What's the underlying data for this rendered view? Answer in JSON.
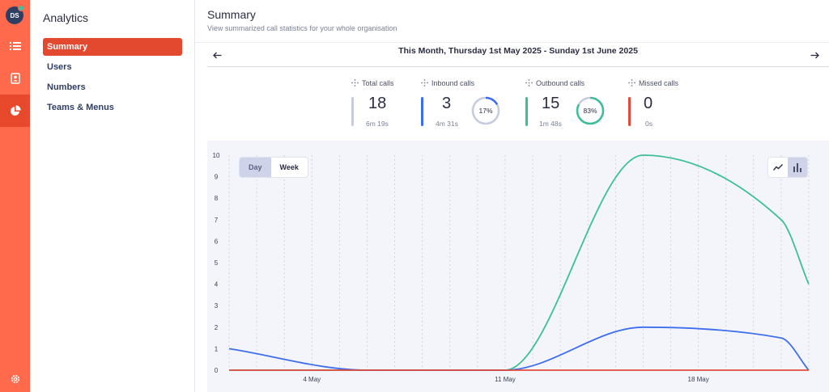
{
  "rail": {
    "avatar_initials": "DS",
    "items": [
      {
        "icon": "list-icon"
      },
      {
        "icon": "contacts-icon"
      },
      {
        "icon": "pie-chart-icon",
        "active": true
      },
      {
        "icon": "settings-icon"
      }
    ]
  },
  "sidebar": {
    "title": "Analytics",
    "items": [
      {
        "label": "Summary",
        "active": true
      },
      {
        "label": "Users"
      },
      {
        "label": "Numbers"
      },
      {
        "label": "Teams & Menus"
      }
    ]
  },
  "header": {
    "title": "Summary",
    "subtitle": "View summarized call statistics for your whole organisation"
  },
  "date_range": {
    "label": "This Month, Thursday 1st May 2025 - Sunday 1st June 2025"
  },
  "stats": [
    {
      "label": "Total calls",
      "value": "18",
      "sub": "6m 19s",
      "color": "#c7cbe0"
    },
    {
      "label": "Inbound calls",
      "value": "3",
      "sub": "4m 31s",
      "color": "#3d6ef0",
      "ring_text": "17%",
      "ring_fraction": 0.17
    },
    {
      "label": "Outbound calls",
      "value": "15",
      "sub": "1m 48s",
      "color": "#3cbf98",
      "ring_text": "83%",
      "ring_fraction": 0.83
    },
    {
      "label": "Missed calls",
      "value": "0",
      "sub": "0s",
      "color": "#e14a3a"
    }
  ],
  "chart_controls": {
    "day_label": "Day",
    "week_label": "Week",
    "selected": "Day",
    "chart_types": [
      "line-chart-icon",
      "bar-chart-icon"
    ],
    "selected_type": "bar-chart-icon"
  },
  "chart_data": {
    "type": "line",
    "x": [
      0,
      5,
      10,
      15,
      20,
      21
    ],
    "x_tick_values": [
      3,
      10,
      17
    ],
    "x_tick_labels": [
      "4 May",
      "11 May",
      "18 May"
    ],
    "ylim": [
      0,
      10
    ],
    "y_ticks": [
      0,
      1,
      2,
      3,
      4,
      5,
      6,
      7,
      8,
      9,
      10
    ],
    "grid": "vertical dashed",
    "series": [
      {
        "color": "#3cbf98",
        "values": [
          0,
          0,
          0,
          10,
          7,
          4
        ]
      },
      {
        "color": "#3d6ef0",
        "values": [
          1,
          0,
          0,
          2,
          1.5,
          0
        ]
      },
      {
        "color": "#e14a3a",
        "values": [
          0,
          0,
          0,
          0,
          0,
          0
        ]
      }
    ]
  }
}
